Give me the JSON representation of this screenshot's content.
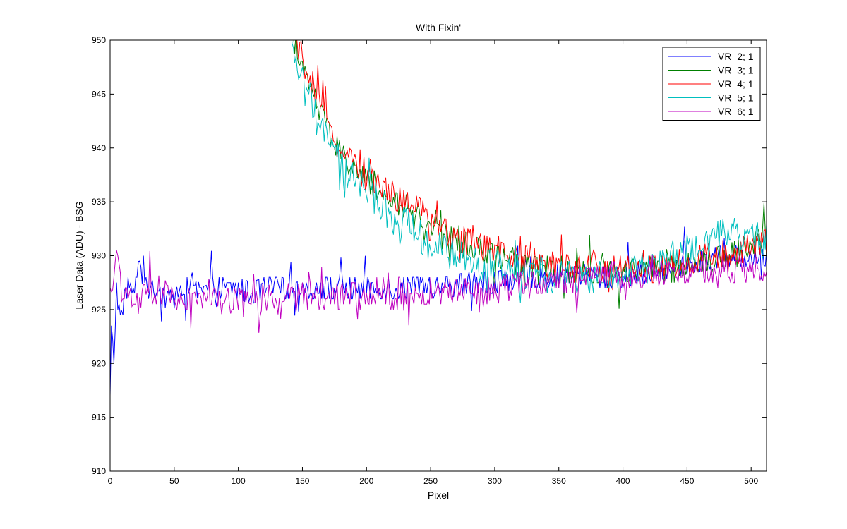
{
  "chart_data": {
    "type": "line",
    "title": "With Fixin'",
    "xlabel": "Pixel",
    "ylabel": "Laser Data (ADU) - BSG",
    "xlim": [
      0,
      512
    ],
    "ylim": [
      910,
      950
    ],
    "xticks": [
      0,
      50,
      100,
      150,
      200,
      250,
      300,
      350,
      400,
      450,
      500
    ],
    "yticks": [
      910,
      915,
      920,
      925,
      930,
      935,
      940,
      945,
      950
    ],
    "grid": false,
    "legend_position": "top-right",
    "series": [
      {
        "name": "VR  2; 1",
        "color": "#0000ff",
        "x": [
          0,
          1,
          3,
          5,
          8,
          12,
          20,
          25,
          30,
          40,
          50,
          60,
          70,
          80,
          90,
          100,
          110,
          120,
          130,
          140,
          150,
          160,
          170,
          180,
          190,
          200,
          220,
          240,
          260,
          280,
          300,
          320,
          340,
          360,
          380,
          400,
          420,
          440,
          460,
          480,
          500,
          512
        ],
        "y": [
          916.5,
          923,
          920.5,
          927,
          924,
          927,
          927,
          929.5,
          927,
          926,
          926.5,
          927,
          926.5,
          927,
          927,
          927,
          926.5,
          927,
          927,
          927,
          927,
          927,
          927,
          927,
          927,
          927,
          927,
          927,
          927,
          927.5,
          927.5,
          928,
          928,
          928.5,
          928,
          928,
          928.5,
          929,
          929.5,
          930,
          930,
          929.5
        ]
      },
      {
        "name": "VR  3; 1",
        "color": "#008000",
        "x": [
          143,
          145,
          150,
          155,
          160,
          165,
          170,
          175,
          180,
          190,
          200,
          210,
          220,
          230,
          240,
          250,
          260,
          270,
          280,
          290,
          300,
          310,
          320,
          330,
          340,
          350,
          360,
          370,
          380,
          390,
          400,
          420,
          440,
          460,
          480,
          500,
          512
        ],
        "y": [
          950,
          950,
          947,
          946,
          944.5,
          943,
          941.5,
          940.5,
          939.5,
          938,
          937,
          936,
          935,
          934.5,
          934,
          933,
          932,
          931.5,
          931,
          930.5,
          930,
          929.5,
          929,
          929,
          928.5,
          928.5,
          928.5,
          928.5,
          928.5,
          928.5,
          928.5,
          929,
          929,
          929.5,
          930,
          931,
          932
        ]
      },
      {
        "name": "VR  4; 1",
        "color": "#ff0000",
        "x": [
          145,
          150,
          155,
          160,
          165,
          170,
          180,
          190,
          200,
          210,
          220,
          230,
          240,
          250,
          260,
          270,
          280,
          290,
          300,
          310,
          320,
          340,
          360,
          380,
          400,
          420,
          440,
          460,
          480,
          500,
          512
        ],
        "y": [
          950,
          948,
          946.5,
          945,
          943.5,
          942,
          940,
          938.5,
          937.5,
          936.5,
          936,
          935,
          934.5,
          933.5,
          932.5,
          932,
          931.5,
          931,
          930.5,
          930,
          930,
          929.5,
          929,
          929,
          929,
          929,
          929,
          929.5,
          930,
          930.5,
          931.5
        ]
      },
      {
        "name": "VR  5; 1",
        "color": "#00bfbf",
        "x": [
          140,
          145,
          150,
          155,
          160,
          165,
          170,
          175,
          180,
          190,
          200,
          210,
          220,
          230,
          240,
          250,
          260,
          270,
          280,
          290,
          300,
          320,
          340,
          360,
          380,
          400,
          420,
          440,
          460,
          480,
          500,
          512
        ],
        "y": [
          950,
          948,
          946.5,
          945,
          943,
          941.5,
          940.5,
          939.5,
          938.5,
          937,
          936,
          935,
          933.5,
          933,
          932,
          931,
          930.5,
          930,
          929.5,
          929,
          929,
          928.5,
          928,
          928,
          928,
          928,
          929,
          930,
          931,
          932,
          932,
          931
        ]
      },
      {
        "name": "VR  6; 1",
        "color": "#bf00bf",
        "x": [
          0,
          3,
          6,
          10,
          20,
          30,
          40,
          50,
          60,
          70,
          80,
          90,
          100,
          110,
          120,
          130,
          140,
          150,
          160,
          170,
          180,
          190,
          200,
          220,
          240,
          260,
          280,
          300,
          320,
          340,
          360,
          380,
          400,
          420,
          440,
          460,
          480,
          500,
          512
        ],
        "y": [
          926,
          928,
          931,
          926,
          926,
          926.5,
          926.5,
          926,
          926,
          926,
          926.5,
          926,
          926,
          925.5,
          926,
          925.5,
          926,
          926.5,
          926.5,
          926.5,
          926.5,
          926.5,
          926.5,
          926.5,
          926.5,
          926.5,
          927,
          927,
          927.5,
          927.5,
          927.5,
          928,
          928,
          928,
          928.5,
          928.5,
          928.5,
          928.5,
          928
        ]
      }
    ],
    "plot_order": [
      0,
      1,
      2,
      3,
      4
    ]
  }
}
